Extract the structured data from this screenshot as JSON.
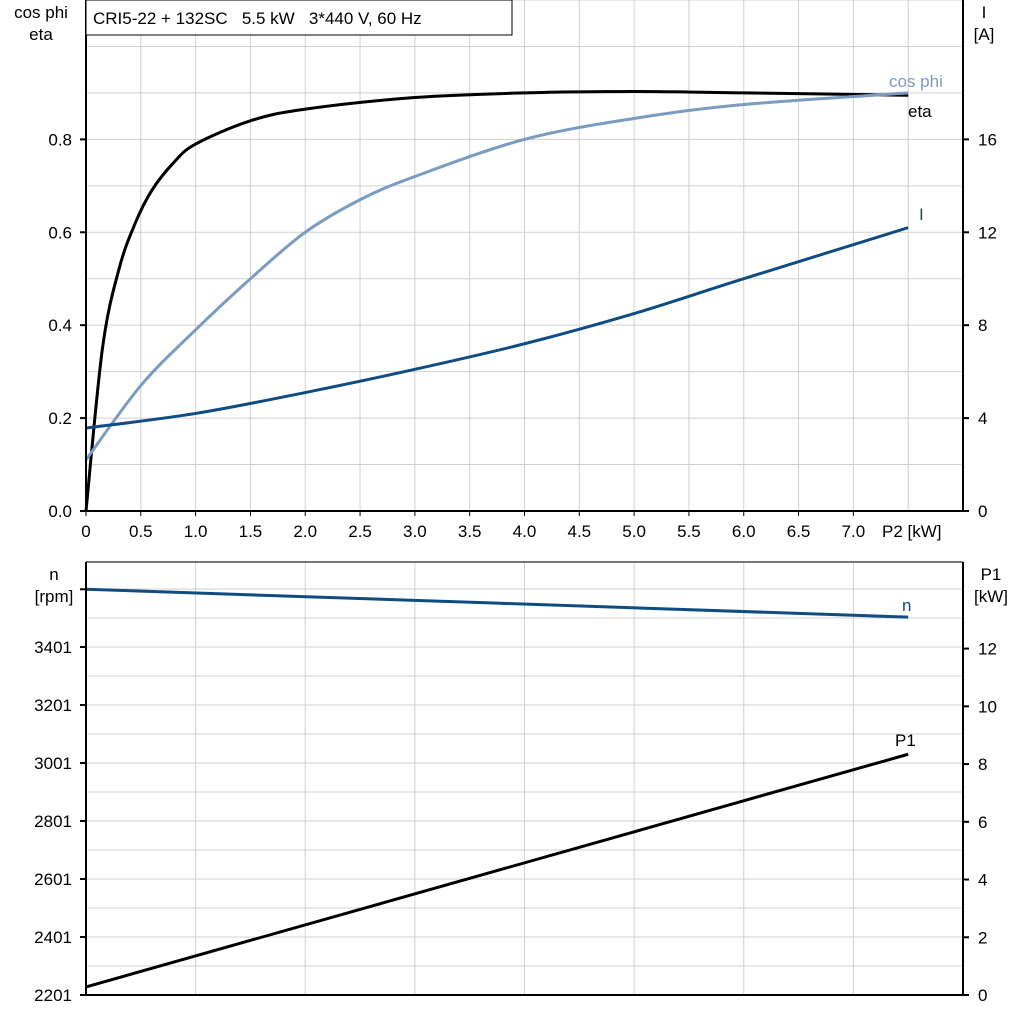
{
  "colors": {
    "eta": "#000000",
    "cos_phi": "#7a9cc0",
    "I": "#0f4c81",
    "n": "#0f4c81",
    "P1": "#000000",
    "grid": "#d0d0d0"
  },
  "chart_data": [
    {
      "type": "line",
      "title": "CRI5-22 + 132SC   5.5 kW   3*440 V, 60 Hz",
      "xlabel": "P2 [kW]",
      "ylabel_left": [
        "cos phi",
        "eta"
      ],
      "ylabel_right": [
        "I",
        "[A]"
      ],
      "xlim": [
        0,
        8
      ],
      "ylim_left": [
        0,
        1.1
      ],
      "ylim_right": [
        0,
        22
      ],
      "x_ticks": [
        "0",
        "0.5",
        "1.0",
        "1.5",
        "2.0",
        "2.5",
        "3.0",
        "3.5",
        "4.0",
        "4.5",
        "5.0",
        "5.5",
        "6.0",
        "6.5",
        "7.0"
      ],
      "y_ticks_left": [
        "0.0",
        "0.2",
        "0.4",
        "0.6",
        "0.8"
      ],
      "y_ticks_right": [
        "0",
        "4",
        "8",
        "12",
        "16"
      ],
      "grid": true,
      "series": [
        {
          "name": "eta",
          "axis": "left",
          "x": [
            0,
            0.15,
            0.3,
            0.45,
            0.6,
            0.8,
            1.0,
            1.5,
            2.0,
            3.0,
            4.0,
            5.0,
            6.0,
            7.5
          ],
          "y": [
            0,
            0.35,
            0.52,
            0.62,
            0.69,
            0.75,
            0.79,
            0.84,
            0.865,
            0.89,
            0.9,
            0.903,
            0.9,
            0.895
          ]
        },
        {
          "name": "cos phi",
          "axis": "left",
          "x": [
            0,
            0.5,
            1.0,
            1.5,
            2.0,
            2.5,
            3.0,
            4.0,
            5.0,
            6.0,
            7.5
          ],
          "y": [
            0.11,
            0.27,
            0.39,
            0.5,
            0.6,
            0.67,
            0.72,
            0.8,
            0.845,
            0.875,
            0.9
          ]
        },
        {
          "name": "I",
          "axis": "right",
          "x": [
            0,
            1.0,
            2.0,
            3.0,
            4.0,
            5.0,
            6.0,
            7.5
          ],
          "y": [
            3.57,
            4.2,
            5.1,
            6.1,
            7.2,
            8.5,
            10.0,
            12.2
          ]
        }
      ]
    },
    {
      "type": "line",
      "xlim": [
        0,
        8
      ],
      "ylabel_left": [
        "n",
        "[rpm]"
      ],
      "ylabel_right": [
        "P1",
        "[kW]"
      ],
      "ylim_left": [
        2201,
        3694
      ],
      "ylim_right": [
        0,
        15
      ],
      "y_ticks_left": [
        "2201",
        "2401",
        "2601",
        "2801",
        "3001",
        "3201",
        "3401"
      ],
      "y_ticks_right": [
        "0",
        "2",
        "4",
        "6",
        "8",
        "10",
        "12"
      ],
      "grid": true,
      "series": [
        {
          "name": "n",
          "axis": "left",
          "x": [
            0,
            7.5
          ],
          "y": [
            3600,
            3504
          ]
        },
        {
          "name": "P1",
          "axis": "right",
          "x": [
            0,
            7.5
          ],
          "y": [
            0.28,
            8.34
          ]
        }
      ]
    }
  ]
}
